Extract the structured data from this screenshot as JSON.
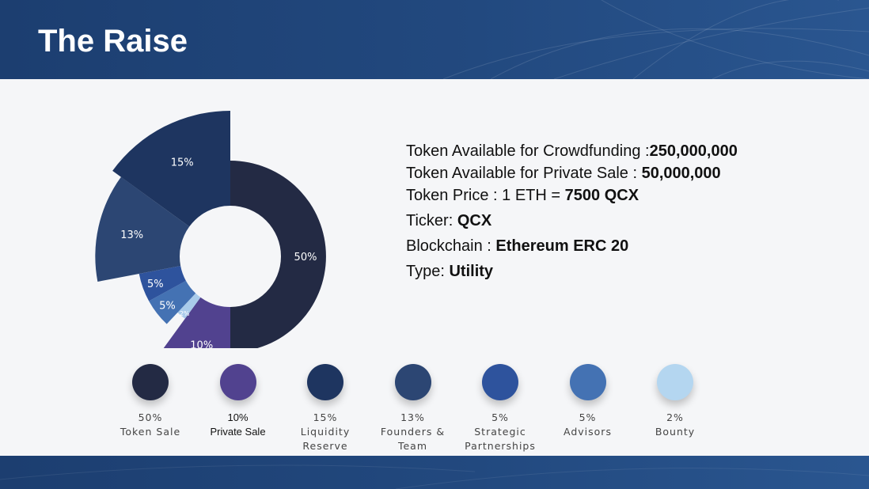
{
  "slide": {
    "title": "The Raise"
  },
  "info": [
    {
      "label": "Token Available for Crowdfunding :",
      "value": "250,000,000"
    },
    {
      "label": "Token Available for Private Sale : ",
      "value": "50,000,000"
    },
    {
      "label": "Token Price : 1 ETH = ",
      "value": "7500 QCX"
    },
    {
      "label": "Ticker: ",
      "value": "QCX"
    },
    {
      "label": "Blockchain : ",
      "value": "Ethereum ERC 20"
    },
    {
      "label": "Type: ",
      "value": "Utility"
    }
  ],
  "chart_data": {
    "type": "pie",
    "variant": "rose-donut",
    "series": [
      {
        "label": "50%",
        "name": "Token Sale",
        "value": 50,
        "color": "#232a44"
      },
      {
        "label": "10%",
        "name": "Private Sale",
        "value": 10,
        "color": "#51428f"
      },
      {
        "label": "2%",
        "name": "Bounty",
        "value": 2,
        "color": "#a9cbea"
      },
      {
        "label": "5%",
        "name": "Advisors",
        "value": 5,
        "color": "#4472b3"
      },
      {
        "label": "5%",
        "name": "Strategic Partnerships",
        "value": 5,
        "color": "#2e539d"
      },
      {
        "label": "13%",
        "name": "Founders & Team",
        "value": 13,
        "color": "#2c4673"
      },
      {
        "label": "15%",
        "name": "Liquidity Reserve",
        "value": 15,
        "color": "#1e3560"
      }
    ]
  },
  "legend": [
    {
      "pct": "50%",
      "name": "Token Sale",
      "color": "#232a44"
    },
    {
      "pct": "10%",
      "name": "Private Sale",
      "color": "#51428f",
      "alt": true
    },
    {
      "pct": "15%",
      "name": "Liquidity\nReserve",
      "color": "#1e3560"
    },
    {
      "pct": "13%",
      "name": "Founders &\nTeam",
      "color": "#2c4673"
    },
    {
      "pct": "5%",
      "name": "Strategic\nPartnerships",
      "color": "#2e539d"
    },
    {
      "pct": "5%",
      "name": "Advisors",
      "color": "#4472b3"
    },
    {
      "pct": "2%",
      "name": "Bounty",
      "color": "#b4d6f0"
    }
  ]
}
